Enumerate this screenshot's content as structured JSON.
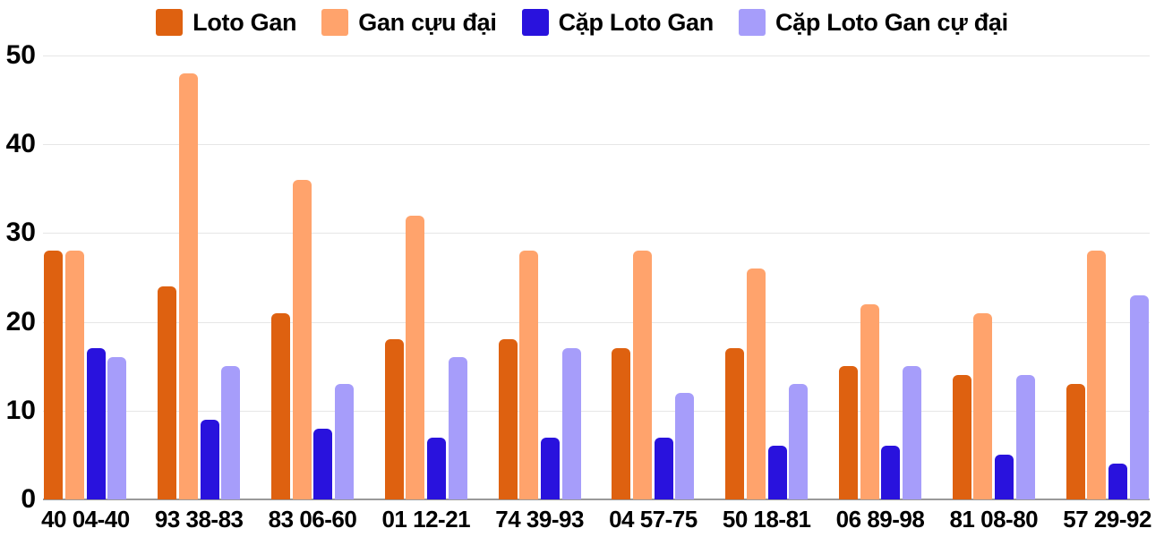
{
  "chart_data": {
    "type": "bar",
    "title": "",
    "xlabel": "",
    "ylabel": "",
    "categories": [
      "40 04-40",
      "93 38-83",
      "83 06-60",
      "01 12-21",
      "74 39-93",
      "04 57-75",
      "50 18-81",
      "06 89-98",
      "81 08-80",
      "57 29-92"
    ],
    "series": [
      {
        "name": "Loto Gan",
        "color": "#de6110",
        "values": [
          28,
          24,
          21,
          18,
          18,
          17,
          17,
          15,
          14,
          13
        ]
      },
      {
        "name": "Gan cựu đại",
        "color": "#ffa36c",
        "values": [
          28,
          48,
          36,
          32,
          28,
          28,
          26,
          22,
          21,
          28
        ]
      },
      {
        "name": "Cặp Loto Gan",
        "color": "#2912dd",
        "values": [
          17,
          9,
          8,
          7,
          7,
          7,
          6,
          6,
          5,
          4
        ]
      },
      {
        "name": "Cặp Loto Gan cự đại",
        "color": "#a69dfa",
        "values": [
          16,
          15,
          13,
          16,
          17,
          12,
          13,
          15,
          14,
          23
        ]
      }
    ],
    "y_ticks": [
      0,
      10,
      20,
      30,
      40,
      50
    ],
    "ylim": [
      0,
      50
    ],
    "grid": true,
    "legend_position": "top",
    "colors": {
      "gridline": "#e6e6e6",
      "axis_line": "#9a9a9a",
      "text": "#000000",
      "background": "#ffffff"
    }
  }
}
